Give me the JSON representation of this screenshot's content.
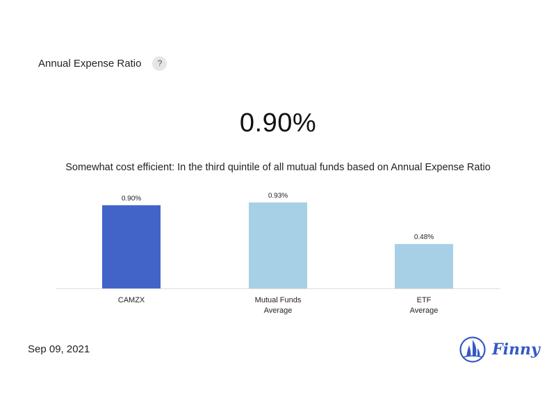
{
  "header": {
    "title": "Annual Expense Ratio",
    "help_label": "?"
  },
  "summary": {
    "value": "0.90%",
    "description": "Somewhat cost efficient: In the third quintile of all mutual funds based on Annual Expense Ratio"
  },
  "footer": {
    "date": "Sep 09, 2021",
    "brand": "Finny"
  },
  "colors": {
    "primary_bar": "#4263c8",
    "comparison_bar": "#a7cfe6",
    "axis": "#dddddd",
    "brand": "#3459c4"
  },
  "chart_data": {
    "type": "bar",
    "title": "",
    "xlabel": "",
    "ylabel": "",
    "ylim": [
      0,
      1.0
    ],
    "grid": false,
    "categories": [
      [
        "CAMZX"
      ],
      [
        "Mutual Funds",
        "Average"
      ],
      [
        "ETF",
        "Average"
      ]
    ],
    "values": [
      0.9,
      0.93,
      0.48
    ],
    "value_labels": [
      "0.90%",
      "0.93%",
      "0.48%"
    ],
    "highlight_index": 0
  }
}
